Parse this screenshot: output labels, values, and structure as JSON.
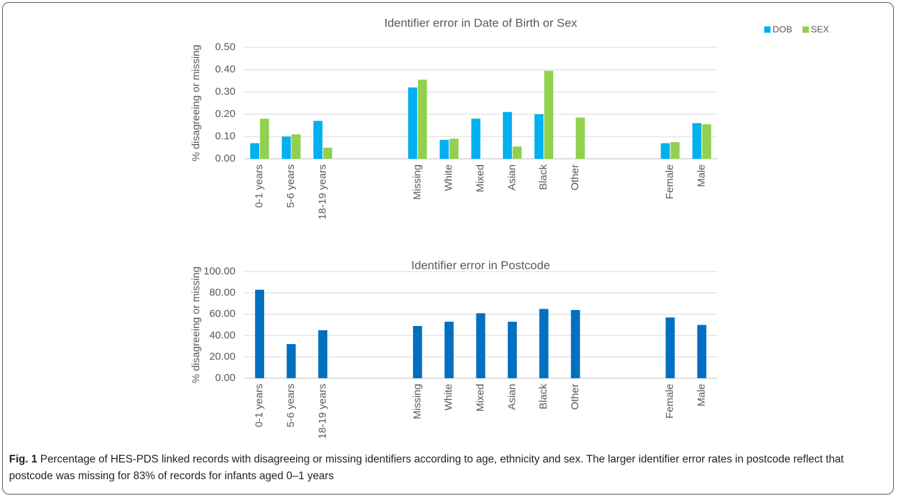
{
  "chart_data": [
    {
      "type": "bar",
      "title": "Identifier error in Date of Birth or Sex",
      "ylabel": "% disagreeing or missing",
      "categories": [
        "0-1 years",
        "5-6 years",
        "18-19 years",
        null,
        null,
        "Missing",
        "White",
        "Mixed",
        "Asian",
        "Black",
        "Other",
        null,
        null,
        "Female",
        "Male"
      ],
      "series": [
        {
          "name": "DOB",
          "color": "#00b0f0",
          "values": [
            0.07,
            0.1,
            0.17,
            null,
            null,
            0.32,
            0.085,
            0.18,
            0.21,
            0.2,
            null,
            null,
            null,
            0.07,
            0.16
          ]
        },
        {
          "name": "SEX",
          "color": "#92d050",
          "values": [
            0.18,
            0.11,
            0.05,
            null,
            null,
            0.355,
            0.09,
            null,
            0.055,
            0.395,
            0.185,
            null,
            null,
            0.075,
            0.155
          ]
        }
      ],
      "ylim": [
        0,
        0.5
      ],
      "yticks": [
        {
          "value": 0,
          "label": "0.00"
        },
        {
          "value": 0.1,
          "label": "0.10"
        },
        {
          "value": 0.2,
          "label": "0.20"
        },
        {
          "value": 0.3,
          "label": "0.30"
        },
        {
          "value": 0.4,
          "label": "0.40"
        },
        {
          "value": 0.5,
          "label": "0.50"
        }
      ],
      "grid": true,
      "legend": "top-right"
    },
    {
      "type": "bar",
      "title": "Identifier error in Postcode",
      "ylabel": "% disagreeing or missing",
      "categories": [
        "0-1 years",
        "5-6 years",
        "18-19 years",
        null,
        null,
        "Missing",
        "White",
        "Mixed",
        "Asian",
        "Black",
        "Other",
        null,
        null,
        "Female",
        "Male"
      ],
      "series": [
        {
          "name": null,
          "color": "#0070c0",
          "values": [
            83,
            32,
            45,
            null,
            null,
            49,
            53,
            61,
            53,
            65,
            64,
            null,
            null,
            57,
            50
          ]
        }
      ],
      "ylim": [
        0,
        100
      ],
      "yticks": [
        {
          "value": 0,
          "label": "0.00"
        },
        {
          "value": 20,
          "label": "20.00"
        },
        {
          "value": 40,
          "label": "40.00"
        },
        {
          "value": 60,
          "label": "60.00"
        },
        {
          "value": 80,
          "label": "80.00"
        },
        {
          "value": 100,
          "label": "100.00"
        }
      ],
      "grid": true
    }
  ],
  "caption": {
    "label": "Fig. 1",
    "text": "Percentage of HES-PDS linked records with disagreeing or missing identifiers according to age, ethnicity and sex. The larger identifier error rates in postcode reflect that postcode was missing for 83% of records for infants aged 0–1 years"
  }
}
